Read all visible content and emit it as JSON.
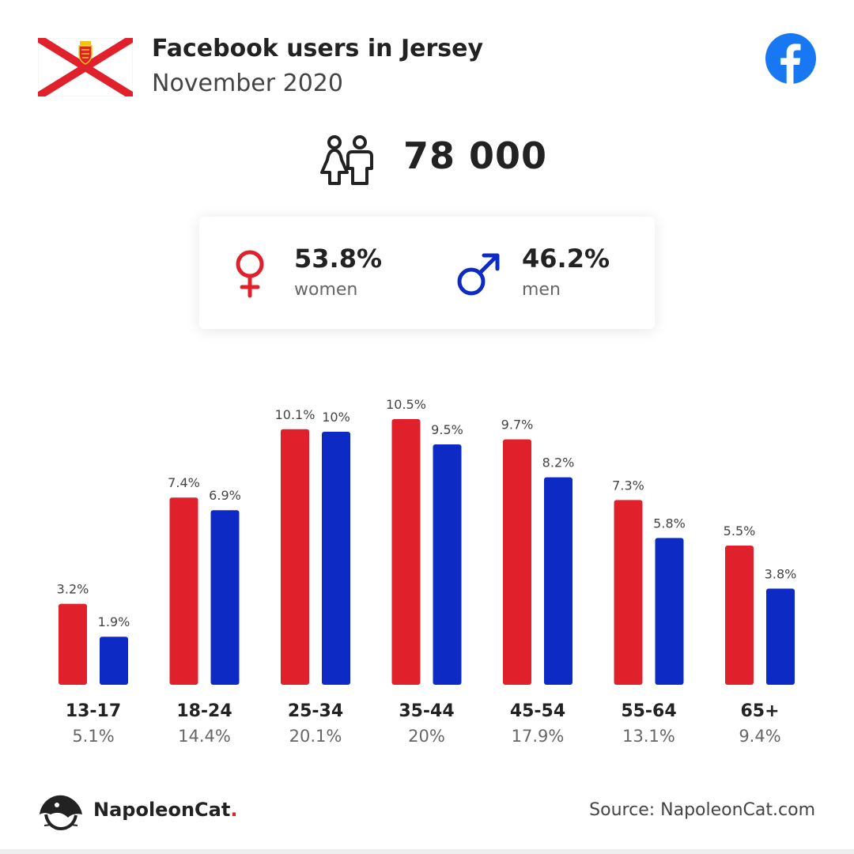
{
  "header": {
    "title": "Facebook users in Jersey",
    "subtitle": "November 2020",
    "flag_icon": "jersey-flag-icon",
    "logo_icon": "facebook-logo-icon"
  },
  "total": {
    "icon": "users-icon",
    "value": "78 000"
  },
  "gender": {
    "women": {
      "value": "53.8%",
      "label": "women",
      "icon": "female-symbol-icon"
    },
    "men": {
      "value": "46.2%",
      "label": "men",
      "icon": "male-symbol-icon"
    }
  },
  "colors": {
    "women": "#e0212b",
    "men": "#0d2bc4",
    "facebook": "#1877f2"
  },
  "chart_data": {
    "type": "bar",
    "categories": [
      "13-17",
      "18-24",
      "25-34",
      "35-44",
      "45-54",
      "55-64",
      "65+"
    ],
    "category_totals": [
      "5.1%",
      "14.4%",
      "20.1%",
      "20%",
      "17.9%",
      "13.1%",
      "9.4%"
    ],
    "series": [
      {
        "name": "women",
        "values": [
          3.2,
          7.4,
          10.1,
          10.5,
          9.7,
          7.3,
          5.5
        ],
        "labels": [
          "3.2%",
          "7.4%",
          "10.1%",
          "10.5%",
          "9.7%",
          "7.3%",
          "5.5%"
        ]
      },
      {
        "name": "men",
        "values": [
          1.9,
          6.9,
          10,
          9.5,
          8.2,
          5.8,
          3.8
        ],
        "labels": [
          "1.9%",
          "6.9%",
          "10%",
          "9.5%",
          "8.2%",
          "5.8%",
          "3.8%"
        ]
      }
    ],
    "title": "",
    "xlabel": "",
    "ylabel": "",
    "ylim": [
      0,
      10.5
    ],
    "grid": false,
    "legend": "none"
  },
  "footer": {
    "brand_name": "NapoleonCat",
    "brand_dot": ".",
    "source": "Source: NapoleonCat.com"
  }
}
